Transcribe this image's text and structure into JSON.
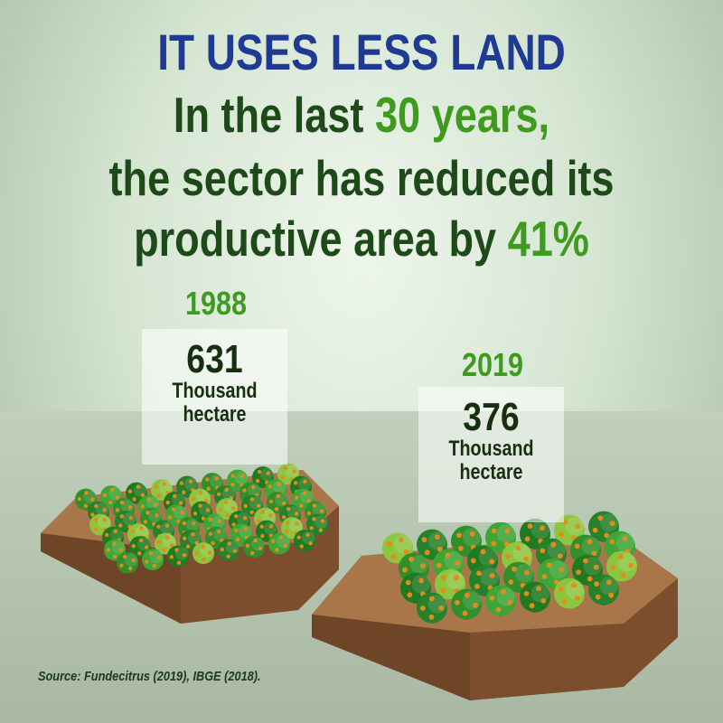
{
  "title": "IT USES LESS LAND",
  "subtitle": {
    "line1_prefix": "In the last",
    "line1_highlight": "30 years,",
    "line2": "the sector has reduced its",
    "line3_prefix": "productive area by",
    "line3_highlight": "41%"
  },
  "comparison": [
    {
      "year": "1988",
      "value": "631",
      "unit_line1": "Thousand",
      "unit_line2": "hectare"
    },
    {
      "year": "2019",
      "value": "376",
      "unit_line1": "Thousand",
      "unit_line2": "hectare"
    }
  ],
  "source": "Source: Fundecitrus (2019), IBGE (2018).",
  "colors": {
    "title": "#1f3a93",
    "text_dark_green": "#1e4a1a",
    "highlight_green": "#3f9b1f",
    "soil": "#8a5a35",
    "tree": "#2f8f2a",
    "orange_fruit": "#e58a1e"
  }
}
